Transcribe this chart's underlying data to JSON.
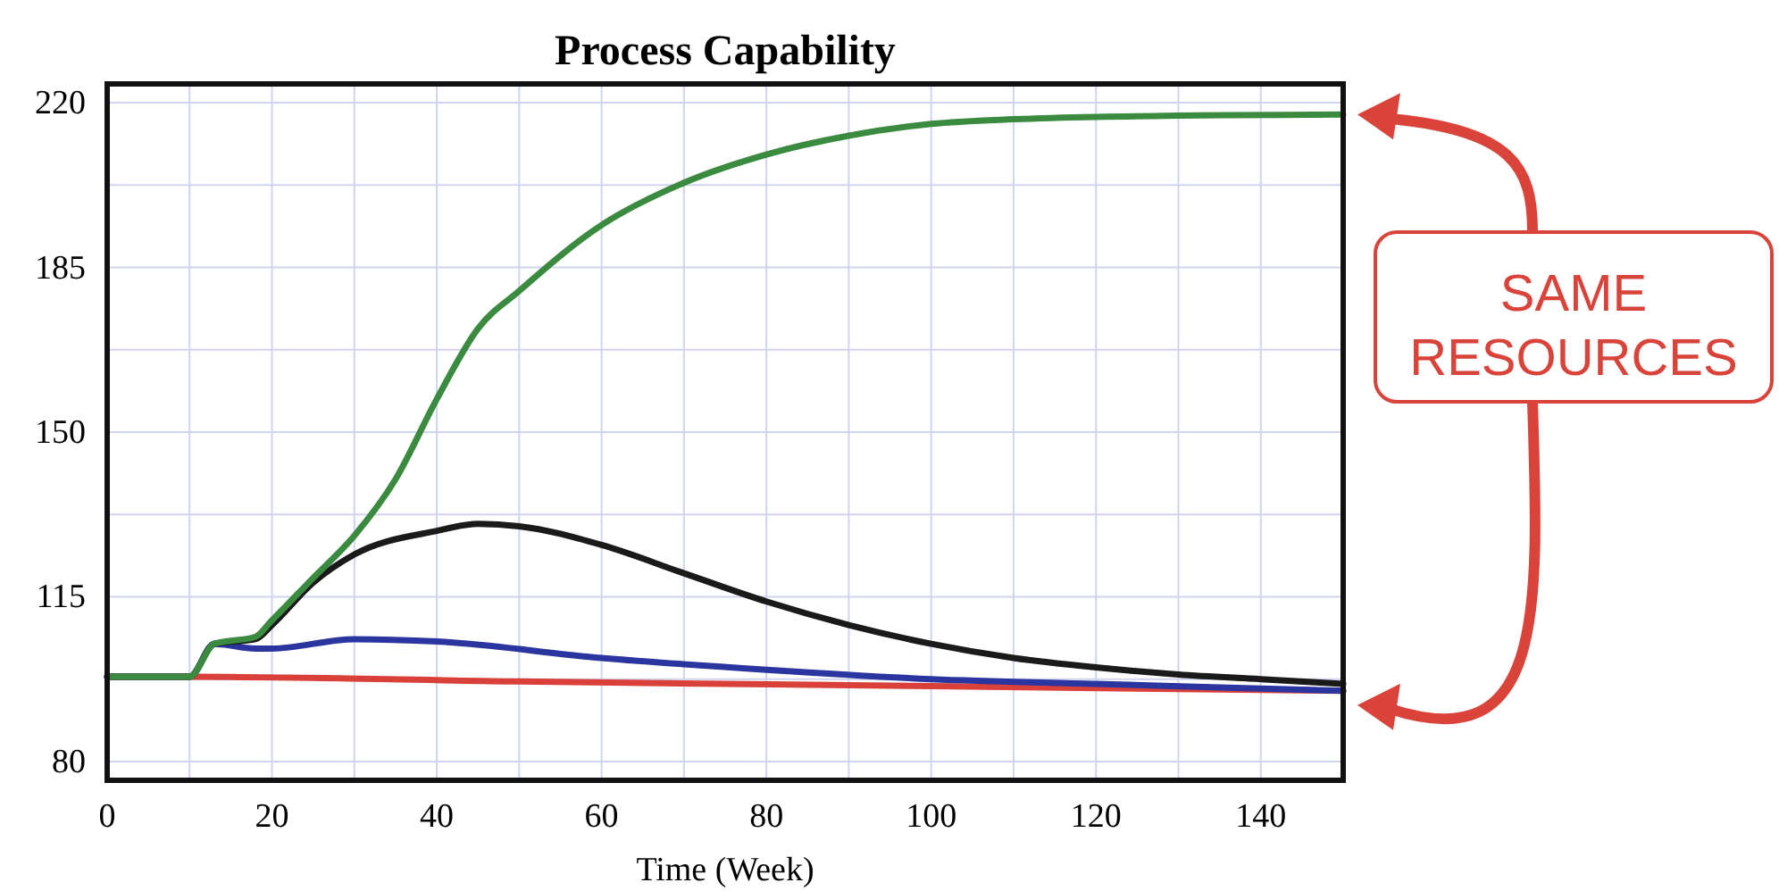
{
  "chart_data": {
    "type": "line",
    "title": "Process Capability",
    "xlabel": "Time (Week)",
    "xlim": [
      0,
      150
    ],
    "xticks": [
      0,
      20,
      40,
      60,
      80,
      100,
      120,
      140
    ],
    "ylim": [
      76,
      224
    ],
    "yticks": [
      80,
      115,
      150,
      185,
      220
    ],
    "grid": true,
    "line_style": "solid",
    "marker": "none",
    "annotations": [
      "SAME RESOURCES"
    ],
    "series": [
      {
        "color": "#d9403a",
        "x": [
          0,
          10,
          50,
          100,
          150
        ],
        "values": [
          98,
          98,
          97,
          96,
          95
        ]
      },
      {
        "color": "#2a35a0",
        "x": [
          0,
          10,
          13,
          18,
          20,
          30,
          40,
          60,
          80,
          100,
          120,
          150
        ],
        "values": [
          98,
          98,
          105,
          104,
          104,
          106,
          105.5,
          102,
          99.5,
          97.5,
          96.5,
          95
        ]
      },
      {
        "color": "#1a1a1a",
        "x": [
          0,
          10,
          13,
          18,
          20,
          25,
          30,
          40,
          45,
          50,
          60,
          70,
          80,
          90,
          100,
          110,
          120,
          130,
          140,
          150
        ],
        "values": [
          98,
          98,
          105,
          106,
          109,
          118,
          124,
          129,
          130.5,
          130,
          126,
          120,
          114,
          109,
          105,
          102,
          100,
          98.5,
          97.5,
          96.5
        ]
      },
      {
        "color": "#3a8a3f",
        "x": [
          0,
          10,
          13,
          18,
          20,
          25,
          30,
          35,
          40,
          45,
          50,
          60,
          70,
          80,
          90,
          100,
          110,
          120,
          150
        ],
        "values": [
          98,
          98,
          105,
          106.5,
          110,
          119,
          128,
          140,
          157,
          172,
          180,
          194,
          203,
          209,
          213,
          215.5,
          216.5,
          217,
          217.5
        ]
      }
    ]
  }
}
